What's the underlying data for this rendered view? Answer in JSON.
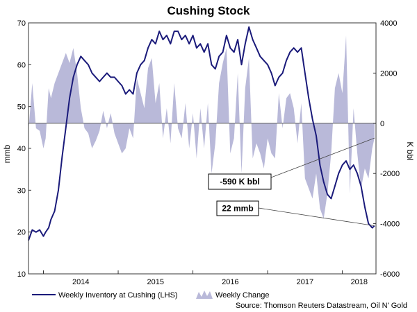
{
  "chart_data": {
    "type": "line",
    "title": "Cushing Stock",
    "left_axis": {
      "label": "mmb",
      "range": [
        10,
        70
      ],
      "ticks": [
        10,
        20,
        30,
        40,
        50,
        60,
        70
      ]
    },
    "right_axis": {
      "label": "K bbl",
      "range": [
        -6000,
        4000
      ],
      "ticks": [
        -6000,
        -4000,
        -2000,
        0,
        2000,
        4000
      ]
    },
    "x_axis": {
      "range": [
        2013.8,
        2018.45
      ],
      "year_labels": [
        "2014",
        "2015",
        "2016",
        "2017",
        "2018"
      ],
      "year_starts": [
        2014,
        2015,
        2016,
        2017,
        2018
      ]
    },
    "series": [
      {
        "name": "Weekly Inventory at Cushing (LHS)",
        "axis": "left",
        "color": "#1a1a7a",
        "x": [
          2013.8,
          2013.85,
          2013.9,
          2013.95,
          2014.0,
          2014.03,
          2014.07,
          2014.1,
          2014.15,
          2014.2,
          2014.25,
          2014.3,
          2014.35,
          2014.4,
          2014.45,
          2014.5,
          2014.55,
          2014.6,
          2014.65,
          2014.7,
          2014.75,
          2014.8,
          2014.85,
          2014.9,
          2014.95,
          2015.0,
          2015.05,
          2015.1,
          2015.15,
          2015.2,
          2015.25,
          2015.3,
          2015.35,
          2015.4,
          2015.45,
          2015.5,
          2015.55,
          2015.6,
          2015.65,
          2015.7,
          2015.75,
          2015.8,
          2015.85,
          2015.9,
          2015.95,
          2016.0,
          2016.05,
          2016.1,
          2016.15,
          2016.2,
          2016.25,
          2016.3,
          2016.35,
          2016.4,
          2016.45,
          2016.5,
          2016.55,
          2016.6,
          2016.65,
          2016.7,
          2016.75,
          2016.8,
          2016.85,
          2016.9,
          2016.95,
          2017.0,
          2017.05,
          2017.1,
          2017.15,
          2017.2,
          2017.25,
          2017.3,
          2017.35,
          2017.4,
          2017.45,
          2017.5,
          2017.55,
          2017.6,
          2017.65,
          2017.7,
          2017.75,
          2017.8,
          2017.85,
          2017.9,
          2017.95,
          2018.0,
          2018.05,
          2018.1,
          2018.15,
          2018.2,
          2018.25,
          2018.3,
          2018.35,
          2018.4,
          2018.43
        ],
        "values": [
          18,
          20.5,
          20,
          20.5,
          19,
          20,
          21,
          23,
          25,
          30,
          38,
          45,
          52,
          57,
          60,
          62,
          61,
          60,
          58,
          57,
          56,
          57,
          58,
          57,
          57,
          56,
          55,
          53,
          54,
          53,
          58,
          60,
          61,
          64,
          66,
          65,
          68,
          66,
          67,
          65,
          68,
          68,
          66,
          67,
          65,
          67,
          64,
          65,
          63,
          65,
          60,
          59,
          62,
          63,
          67,
          64,
          63,
          66,
          60,
          65,
          69,
          66,
          64,
          62,
          61,
          60,
          58,
          55,
          57,
          58,
          61,
          63,
          64,
          63,
          64,
          58,
          52,
          47,
          43,
          36,
          32,
          29,
          28,
          31,
          34,
          36,
          37,
          35,
          36,
          34,
          31,
          26,
          22,
          21,
          21.5
        ]
      },
      {
        "name": "Weekly Change",
        "axis": "right",
        "color": "#b9b9d9",
        "x": [
          2013.8,
          2013.85,
          2013.9,
          2013.95,
          2014.0,
          2014.03,
          2014.07,
          2014.1,
          2014.15,
          2014.2,
          2014.25,
          2014.3,
          2014.35,
          2014.4,
          2014.45,
          2014.5,
          2014.55,
          2014.6,
          2014.65,
          2014.7,
          2014.75,
          2014.8,
          2014.85,
          2014.9,
          2014.95,
          2015.0,
          2015.05,
          2015.1,
          2015.15,
          2015.2,
          2015.25,
          2015.3,
          2015.35,
          2015.4,
          2015.45,
          2015.5,
          2015.55,
          2015.6,
          2015.65,
          2015.7,
          2015.75,
          2015.8,
          2015.85,
          2015.9,
          2015.95,
          2016.0,
          2016.05,
          2016.1,
          2016.15,
          2016.2,
          2016.25,
          2016.3,
          2016.35,
          2016.4,
          2016.45,
          2016.5,
          2016.55,
          2016.6,
          2016.65,
          2016.7,
          2016.75,
          2016.8,
          2016.85,
          2016.9,
          2016.95,
          2017.0,
          2017.05,
          2017.1,
          2017.15,
          2017.2,
          2017.25,
          2017.3,
          2017.35,
          2017.4,
          2017.45,
          2017.5,
          2017.55,
          2017.6,
          2017.65,
          2017.7,
          2017.75,
          2017.8,
          2017.85,
          2017.9,
          2017.95,
          2018.0,
          2018.05,
          2018.1,
          2018.15,
          2018.2,
          2018.25,
          2018.3,
          2018.35,
          2018.4,
          2018.43
        ],
        "values": [
          -300,
          1600,
          -200,
          -300,
          -1000,
          -600,
          1400,
          1000,
          1600,
          2000,
          2400,
          2800,
          2400,
          3000,
          2000,
          600,
          -200,
          -400,
          -1000,
          -700,
          -300,
          500,
          -200,
          400,
          -400,
          -800,
          -1200,
          -1000,
          -200,
          -600,
          1800,
          1200,
          600,
          2200,
          2600,
          800,
          1600,
          -600,
          600,
          -800,
          1600,
          -200,
          -600,
          800,
          -1000,
          400,
          -1400,
          600,
          -1000,
          800,
          -2000,
          -800,
          1600,
          2400,
          3000,
          -1200,
          -600,
          2000,
          -2000,
          1400,
          2600,
          -1400,
          -800,
          -1200,
          -1800,
          -600,
          -1200,
          -1400,
          1200,
          -200,
          1000,
          1200,
          600,
          -800,
          800,
          -2200,
          -2600,
          -3000,
          -2000,
          -3400,
          -3800,
          -2800,
          -1200,
          1400,
          2000,
          1200,
          3500,
          -2800,
          600,
          -1200,
          -2600,
          -1800,
          -2200,
          -1000,
          -590
        ]
      }
    ],
    "legend": [
      "Weekly Inventory at Cushing (LHS)",
      "Weekly Change"
    ],
    "legend_position": "bottom-left",
    "annotations": [
      {
        "name": "weekly-change-annotation",
        "text": "-590 K bbl",
        "x": 2018.43,
        "y": -590,
        "axis": "right"
      },
      {
        "name": "inventory-annotation",
        "text": "22 mmb",
        "x": 2018.43,
        "y": 21.5,
        "axis": "left"
      }
    ],
    "source": "Source: Thomson Reuters Datastream, Oil N' Gold"
  }
}
